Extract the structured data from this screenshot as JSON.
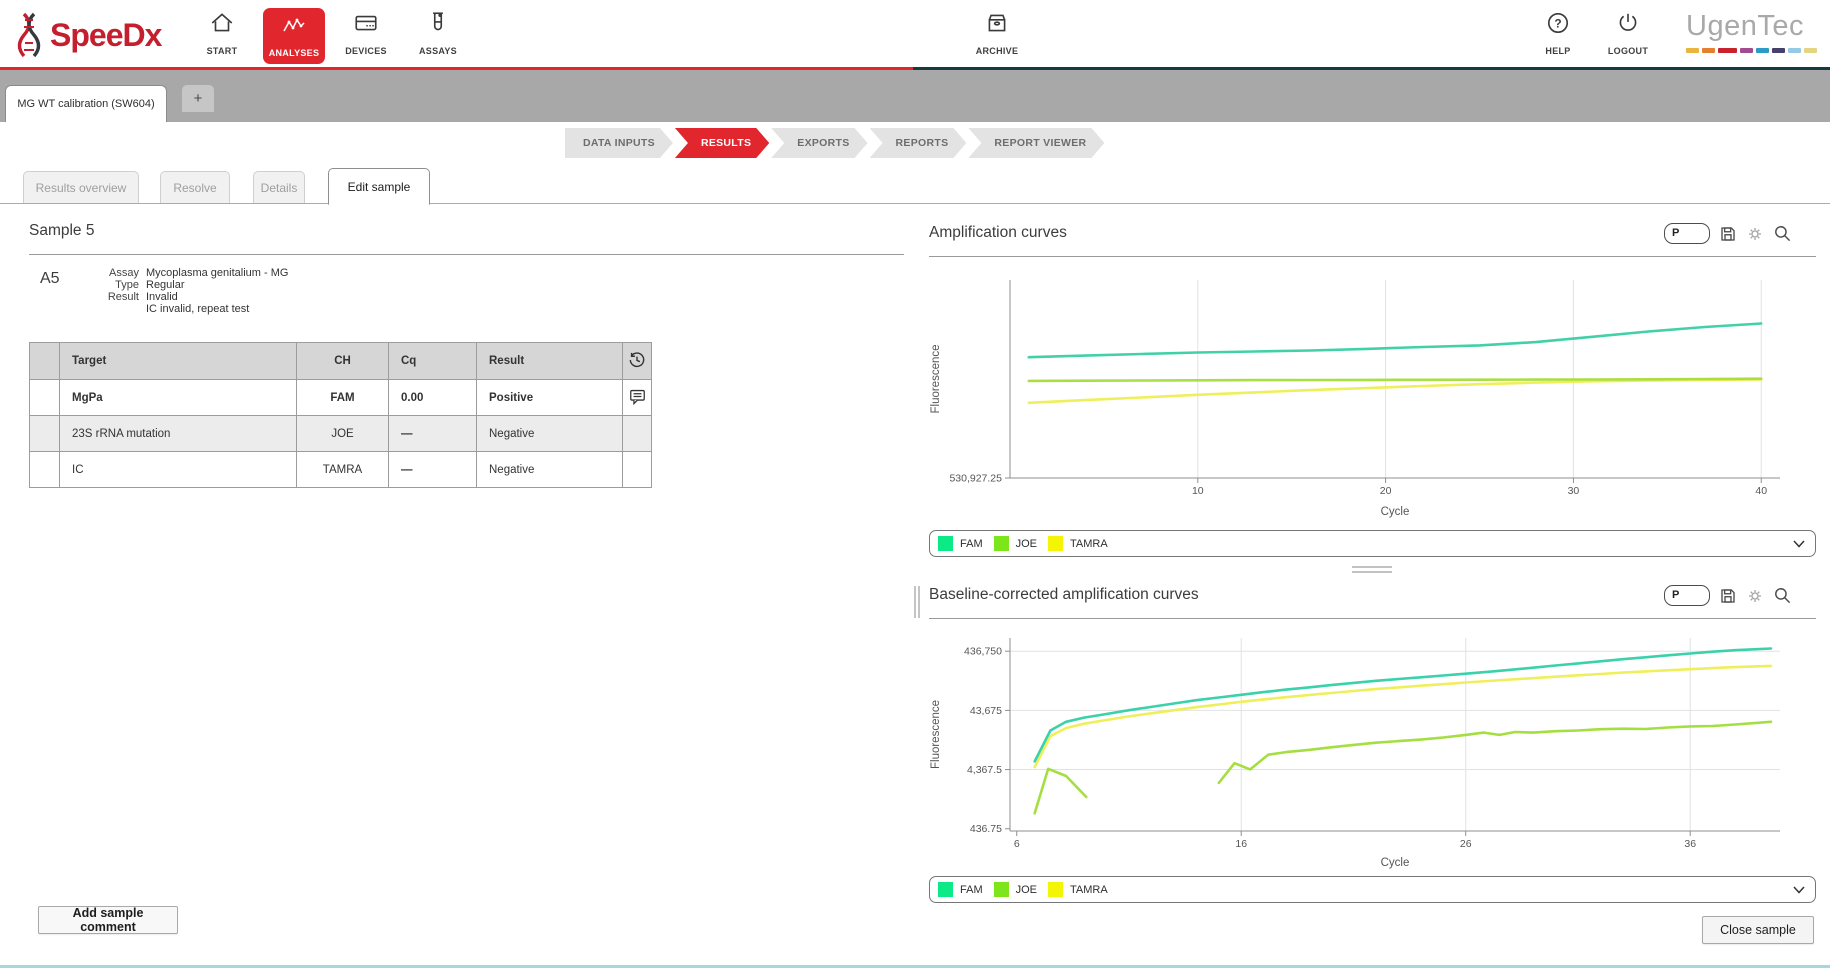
{
  "brand": {
    "speedx": "SpeeDx",
    "ugentec": "UgenTec",
    "ugentec_colors": [
      "#eab53e",
      "#e5802f",
      "#c8232c",
      "#a34b90",
      "#2d9bc6",
      "#46406e",
      "#96c9e4",
      "#e5d483"
    ]
  },
  "nav": {
    "items": [
      {
        "id": "start",
        "label": "START"
      },
      {
        "id": "analyses",
        "label": "ANALYSES",
        "active": true
      },
      {
        "id": "devices",
        "label": "DEVICES"
      },
      {
        "id": "assays",
        "label": "ASSAYS"
      },
      {
        "id": "archive",
        "label": "ARCHIVE"
      }
    ],
    "help": "HELP",
    "logout": "LOGOUT"
  },
  "tabs": {
    "open_tab": "MG WT calibration (SW604)",
    "new_tab_label": "+"
  },
  "breadcrumb": {
    "steps": [
      "DATA INPUTS",
      "RESULTS",
      "EXPORTS",
      "REPORTS",
      "REPORT VIEWER"
    ],
    "active_index": 1
  },
  "subtabs": {
    "items": [
      {
        "label": "Results overview",
        "state": "inactive"
      },
      {
        "label": "Resolve",
        "state": "inactive"
      },
      {
        "label": "Details",
        "state": "inactive"
      },
      {
        "label": "Edit sample",
        "state": "active"
      }
    ]
  },
  "sample": {
    "title": "Sample 5",
    "well": "A5",
    "fields": [
      {
        "label": "Assay",
        "value": "Mycoplasma genitalium - MG"
      },
      {
        "label": "Type",
        "value": "Regular"
      },
      {
        "label": "Result",
        "value": "Invalid"
      },
      {
        "label": "",
        "value": "IC invalid, repeat test"
      }
    ]
  },
  "results_table": {
    "headers": [
      "",
      "Target",
      "CH",
      "Cq",
      "Result",
      ""
    ],
    "header_icon": "history-icon",
    "rows": [
      {
        "target": "MgPa",
        "ch": "FAM",
        "cq": "0.00",
        "result": "Positive",
        "bold": true,
        "shaded": false,
        "icon": "comment-icon"
      },
      {
        "target": "23S rRNA mutation",
        "ch": "JOE",
        "cq": "—",
        "result": "Negative",
        "bold": false,
        "shaded": true,
        "icon": null
      },
      {
        "target": "IC",
        "ch": "TAMRA",
        "cq": "—",
        "result": "Negative",
        "bold": false,
        "shaded": false,
        "icon": null
      }
    ]
  },
  "toolbar": {
    "plate_label": "P"
  },
  "legend": {
    "entries": [
      {
        "name": "FAM",
        "color": "#0ce987"
      },
      {
        "name": "JOE",
        "color": "#7de61a"
      },
      {
        "name": "TAMRA",
        "color": "#f4f405"
      }
    ]
  },
  "buttons": {
    "add_comment": "Add sample comment",
    "close_sample": "Close sample"
  },
  "chart_data": [
    {
      "type": "line",
      "title": "Amplification curves",
      "xlabel": "Cycle",
      "ylabel": "Fluorescence",
      "xlim": [
        0,
        41
      ],
      "ylim": [
        530927.25,
        1500000
      ],
      "yscale": "linear",
      "xticks": [
        10,
        20,
        30,
        40
      ],
      "grid_x": [
        10,
        20,
        30,
        40
      ],
      "grid_y": [],
      "yticks": [
        {
          "value": 530927.25,
          "label": "530,927.25"
        }
      ],
      "legend": [
        "FAM",
        "JOE",
        "TAMRA"
      ],
      "legend_position": "bottom",
      "series": [
        {
          "name": "FAM",
          "color": "#38cfa2",
          "x": [
            1,
            4,
            7,
            10,
            13,
            16,
            19,
            22,
            25,
            28,
            31,
            34,
            37,
            40
          ],
          "y": [
            1122000,
            1130000,
            1138000,
            1145000,
            1150000,
            1155000,
            1163000,
            1172000,
            1180000,
            1196000,
            1222000,
            1248000,
            1270000,
            1287000
          ]
        },
        {
          "name": "JOE",
          "color": "#a6dc3a",
          "x": [
            1,
            4,
            7,
            10,
            13,
            16,
            19,
            22,
            25,
            28,
            31,
            34,
            37,
            40
          ],
          "y": [
            1006000,
            1007000,
            1008000,
            1009000,
            1010000,
            1010500,
            1011000,
            1011500,
            1012000,
            1012500,
            1013000,
            1014000,
            1015500,
            1017000
          ]
        },
        {
          "name": "TAMRA",
          "color": "#eeee52",
          "x": [
            1,
            4,
            7,
            10,
            13,
            16,
            19,
            22,
            25,
            28,
            31,
            34,
            37,
            40
          ],
          "y": [
            899000,
            912000,
            925000,
            938000,
            950000,
            961000,
            971000,
            981000,
            990000,
            998000,
            1004000,
            1008000,
            1011000,
            1013000
          ]
        }
      ]
    },
    {
      "type": "line",
      "title": "Baseline-corrected amplification curves",
      "xlabel": "Cycle",
      "ylabel": "Fluorescence",
      "xlim": [
        5.7,
        40
      ],
      "ylim": [
        400,
        730000
      ],
      "yscale": "log",
      "xticks": [
        6,
        16,
        26,
        36
      ],
      "grid_x": [
        16,
        26,
        36
      ],
      "grid_y": [
        436750,
        43675,
        4367.5
      ],
      "yticks": [
        {
          "value": 436750,
          "label": "436,750"
        },
        {
          "value": 43675,
          "label": "43,675"
        },
        {
          "value": 4367.5,
          "label": "4,367.5"
        },
        {
          "value": 436.75,
          "label": "436.75"
        }
      ],
      "legend": [
        "FAM",
        "JOE",
        "TAMRA"
      ],
      "legend_position": "bottom",
      "series": [
        {
          "name": "FAM",
          "color": "#2fcfa6",
          "x": [
            6.8,
            7.5,
            8.2,
            9,
            10,
            11,
            12,
            13,
            14,
            15,
            16,
            17,
            18,
            19,
            20,
            21,
            22,
            23,
            24,
            25,
            26,
            27,
            28,
            29,
            30,
            31,
            32,
            33,
            34,
            35,
            36,
            37,
            38,
            39.6
          ],
          "y": [
            6000,
            20000,
            28000,
            33000,
            38000,
            44000,
            50000,
            57000,
            65000,
            72000,
            80000,
            89000,
            98000,
            107000,
            117000,
            127000,
            138000,
            148000,
            158000,
            170000,
            182000,
            196000,
            212000,
            230000,
            250000,
            272000,
            295000,
            320000,
            345000,
            372000,
            400000,
            428000,
            455000,
            485000
          ]
        },
        {
          "name": "JOE",
          "color": "#a0dc37",
          "segments": [
            {
              "x": [
                6.8,
                7.4,
                8.2,
                9.1
              ],
              "y": [
                800,
                4500,
                3400,
                1500
              ]
            },
            {
              "x": [
                15,
                15.7,
                16.4,
                17.2,
                18,
                19,
                20,
                21,
                22,
                23,
                24,
                25,
                26,
                26.8,
                27.5,
                28.2,
                29,
                30,
                31,
                32,
                33,
                34,
                35,
                36,
                37,
                38,
                39.6
              ],
              "y": [
                2600,
                5600,
                4400,
                7800,
                8600,
                9400,
                10400,
                11400,
                12400,
                13200,
                14000,
                15200,
                16800,
                18400,
                16800,
                18800,
                18400,
                19400,
                20000,
                21000,
                21400,
                21200,
                22400,
                23400,
                23800,
                25200,
                28000
              ]
            }
          ]
        },
        {
          "name": "TAMRA",
          "color": "#eeee52",
          "x": [
            6.8,
            7.5,
            8.2,
            9,
            10,
            11,
            12,
            13,
            14,
            15,
            16,
            17,
            18,
            19,
            20,
            21,
            22,
            23,
            24,
            25,
            26,
            27,
            28,
            29,
            30,
            31,
            32,
            33,
            34,
            35,
            36,
            37,
            38,
            39.6
          ],
          "y": [
            4800,
            16000,
            22000,
            26000,
            30000,
            34500,
            39000,
            44000,
            49500,
            55000,
            61000,
            67000,
            73000,
            79000,
            86000,
            93000,
            100000,
            107000,
            114000,
            121000,
            129000,
            137000,
            145000,
            153000,
            162000,
            171000,
            180000,
            190000,
            199000,
            208000,
            217000,
            226000,
            235000,
            247000
          ]
        }
      ]
    }
  ]
}
